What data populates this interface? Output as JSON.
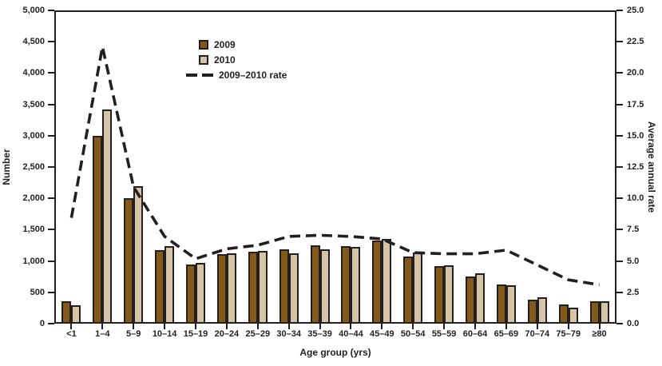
{
  "chart_data": {
    "type": "bar",
    "title": "",
    "xlabel": "Age group (yrs)",
    "categories": [
      "<1",
      "1–4",
      "5–9",
      "10–14",
      "15–19",
      "20–24",
      "25–29",
      "30–34",
      "35–39",
      "40–44",
      "45–49",
      "50–54",
      "55–59",
      "60–64",
      "65–69",
      "70–74",
      "75–79",
      "≥80"
    ],
    "series": [
      {
        "name": "2009",
        "type": "bar",
        "axis": "left",
        "color": "#845a1b",
        "values": [
          340,
          3000,
          2000,
          1160,
          930,
          1090,
          1130,
          1170,
          1240,
          1230,
          1320,
          1060,
          900,
          730,
          610,
          360,
          280,
          330
        ]
      },
      {
        "name": "2010",
        "type": "bar",
        "axis": "left",
        "color": "#d5c4a5",
        "values": [
          270,
          3430,
          2190,
          1220,
          950,
          1110,
          1150,
          1110,
          1170,
          1210,
          1340,
          1120,
          920,
          790,
          590,
          400,
          230,
          330
        ]
      },
      {
        "name": "2009–2010 rate",
        "type": "line",
        "axis": "right",
        "color": "#231f20",
        "dashed": true,
        "values": [
          8.4,
          22.2,
          10.9,
          6.9,
          5.1,
          5.9,
          6.2,
          6.9,
          7.0,
          6.9,
          6.7,
          5.6,
          5.5,
          5.5,
          5.8,
          4.6,
          3.4,
          3.0
        ]
      }
    ],
    "left_axis": {
      "label": "Number",
      "min": 0,
      "max": 5000,
      "step": 500,
      "tick_labels": [
        "5,000",
        "4,500",
        "4,000",
        "3,500",
        "3,000",
        "2,500",
        "2,000",
        "1,500",
        "1,000",
        "500",
        "0"
      ]
    },
    "right_axis": {
      "label": "Average annual rate",
      "min": 0,
      "max": 25,
      "step": 2.5,
      "tick_labels": [
        "25.0",
        "22.5",
        "20.0",
        "17.5",
        "15.0",
        "12.5",
        "10.0",
        "7.5",
        "5.0",
        "2.5",
        "0.0"
      ]
    },
    "grid": false,
    "legend_position": "upper-left-inside"
  },
  "legend": {
    "item_2009": "2009",
    "item_2010": "2010",
    "item_rate": "2009–2010 rate"
  },
  "axis_titles": {
    "left": "Number",
    "right": "Average annual rate",
    "bottom": "Age group (yrs)"
  }
}
